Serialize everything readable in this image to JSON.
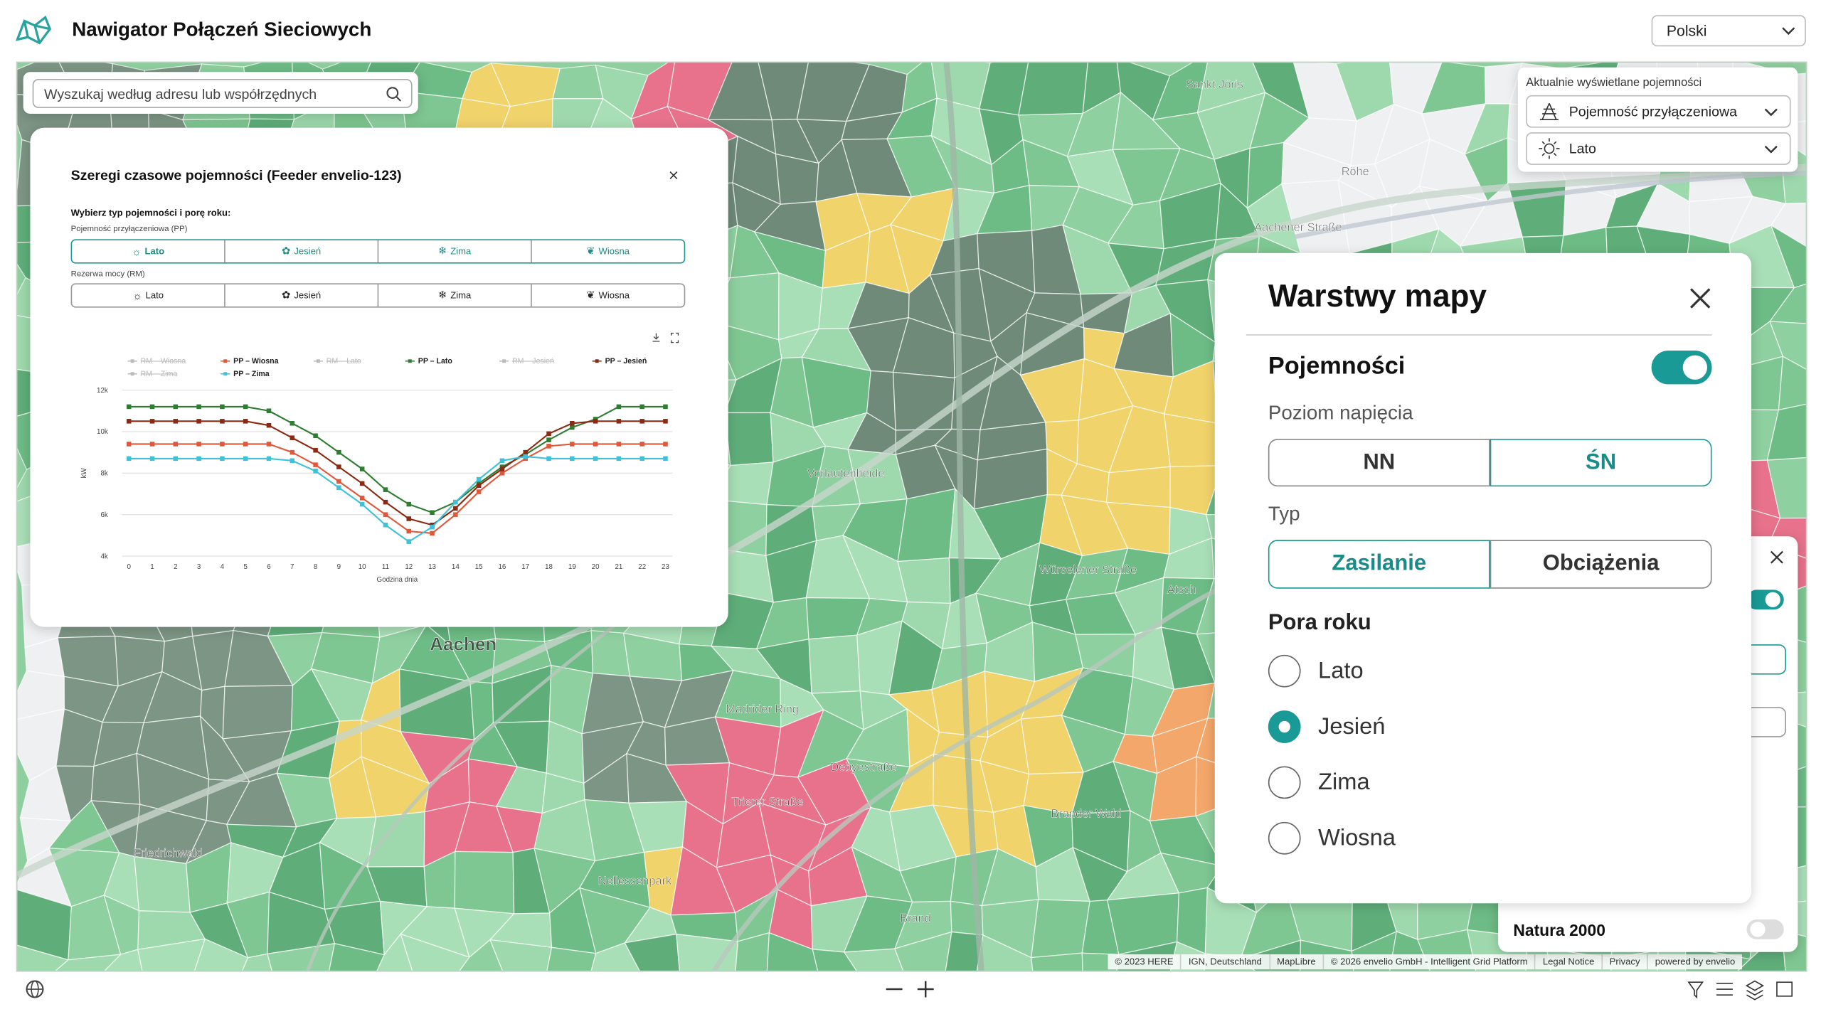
{
  "header": {
    "title": "Nawigator Połączeń Sieciowych",
    "language": "Polski"
  },
  "search": {
    "placeholder": "Wyszukaj według adresu lub współrzędnych"
  },
  "capacity_display": {
    "label": "Aktualnie wyświetlane pojemności",
    "type": "Pojemność przyłączeniowa",
    "season": "Lato"
  },
  "timeseries_panel": {
    "title": "Szeregi czasowe pojemności (Feeder envelio-123)",
    "prompt": "Wybierz typ pojemności i porę roku:",
    "groups": [
      {
        "label": "Pojemność przyłączeniowa (PP)",
        "options": [
          "Lato",
          "Jesień",
          "Zima",
          "Wiosna"
        ],
        "selected": "Lato"
      },
      {
        "label": "Rezerwa mocy (RM)",
        "options": [
          "Lato",
          "Jesień",
          "Zima",
          "Wiosna"
        ],
        "selected": null
      }
    ]
  },
  "chart_data": {
    "type": "line",
    "x_label": "Godzina dnia",
    "y_label": "kW",
    "x": [
      0,
      1,
      2,
      3,
      4,
      5,
      6,
      7,
      8,
      9,
      10,
      11,
      12,
      13,
      14,
      15,
      16,
      17,
      18,
      19,
      20,
      21,
      22,
      23
    ],
    "xlim": [
      0,
      23
    ],
    "xticks": [
      0,
      1,
      2,
      3,
      4,
      5,
      6,
      7,
      8,
      9,
      10,
      11,
      12,
      13,
      14,
      15,
      16,
      17,
      18,
      19,
      20,
      21,
      22,
      23
    ],
    "ylim": [
      4000,
      12000
    ],
    "yticks": [
      {
        "value": 4000,
        "label": "4k"
      },
      {
        "value": 6000,
        "label": "6k"
      },
      {
        "value": 8000,
        "label": "8k"
      },
      {
        "value": 10000,
        "label": "10k"
      },
      {
        "value": 12000,
        "label": "12k"
      }
    ],
    "grid": true,
    "series": [
      {
        "name": "PP – Wiosna",
        "color": "#e0583a",
        "values": [
          9400,
          9400,
          9400,
          9400,
          9400,
          9400,
          9400,
          9000,
          8400,
          7600,
          6800,
          6000,
          5200,
          5100,
          6000,
          7100,
          8000,
          8700,
          9300,
          9400,
          9400,
          9400,
          9400,
          9400
        ]
      },
      {
        "name": "PP – Lato",
        "color": "#2e7d32",
        "values": [
          11200,
          11200,
          11200,
          11200,
          11200,
          11200,
          11000,
          10400,
          9800,
          9000,
          8200,
          7200,
          6500,
          6100,
          6600,
          7500,
          8300,
          8900,
          9600,
          10200,
          10600,
          11200,
          11200,
          11200
        ]
      },
      {
        "name": "PP – Jesień",
        "color": "#8b2a12",
        "values": [
          10500,
          10500,
          10500,
          10500,
          10500,
          10500,
          10300,
          9700,
          9100,
          8300,
          7500,
          6600,
          5800,
          5500,
          6300,
          7400,
          8200,
          9000,
          9900,
          10400,
          10500,
          10500,
          10500,
          10500
        ]
      },
      {
        "name": "PP – Zima",
        "color": "#3fc1d8",
        "values": [
          8700,
          8700,
          8700,
          8700,
          8700,
          8700,
          8700,
          8600,
          8100,
          7300,
          6500,
          5500,
          4700,
          5400,
          6600,
          7700,
          8600,
          8800,
          8700,
          8700,
          8700,
          8700,
          8700,
          8700
        ]
      }
    ],
    "inactive_series": [
      "RM – Wiosna",
      "RM – Zima",
      "RM – Lato",
      "RM – Jesień"
    ],
    "inactive_color": "#bbbbbb"
  },
  "layers_panel": {
    "title": "Warstwy mapy",
    "section": "Pojemności",
    "enabled": true,
    "voltage_label": "Poziom napięcia",
    "voltage_options": [
      "NN",
      "ŚN"
    ],
    "voltage_selected": "ŚN",
    "type_label": "Typ",
    "type_options": [
      "Zasilanie",
      "Obciążenia"
    ],
    "type_selected": "Zasilanie",
    "season_label": "Pora roku",
    "season_options": [
      "Lato",
      "Jesień",
      "Zima",
      "Wiosna"
    ],
    "season_selected": "Jesień"
  },
  "background_panel": {
    "item": "Natura 2000",
    "enabled": false
  },
  "map": {
    "labels": [
      "Aachen",
      "Vorlautenheide",
      "Würselener Straße",
      "Brand",
      "Nellessenpark",
      "Friedrichwald",
      "Sankt Jöris",
      "Röhe",
      "Atsch",
      "Brander Wald",
      "Aachener Straße",
      "Trierer Straße",
      "Debyestraße",
      "Madrider Ring"
    ],
    "attribution": [
      "© 2023 HERE",
      "IGN, Deutschland",
      "MapLibre",
      "© 2026 envelio GmbH - Intelligent Grid Platform",
      "Legal Notice",
      "Privacy",
      "powered by envelio"
    ]
  }
}
